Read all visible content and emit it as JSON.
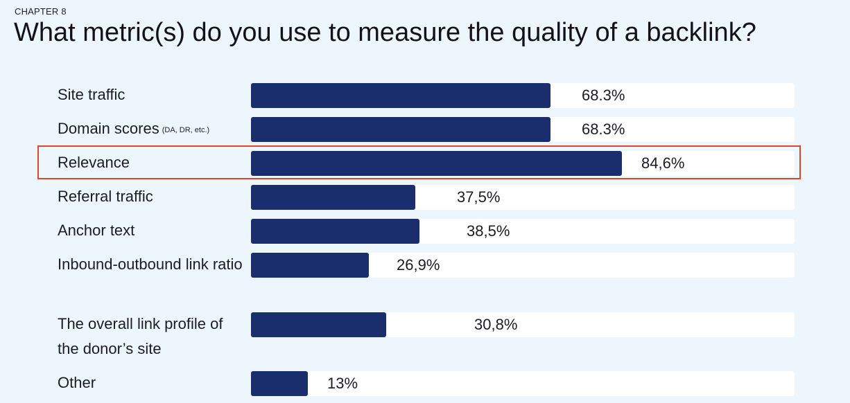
{
  "header": {
    "chapter": "CHAPTER 8",
    "title": "What metric(s) do you use to measure the quality of a backlink?"
  },
  "colors": {
    "background": "#eef6fd",
    "track": "#ffffff",
    "bar": "#1a2d6d",
    "highlight": "#e0442b"
  },
  "chart_data": {
    "type": "bar",
    "orientation": "horizontal",
    "title": "What metric(s) do you use to measure the quality of a backlink?",
    "xlim": [
      0,
      100
    ],
    "grid": false,
    "highlighted_category": "Relevance",
    "categories": [
      {
        "label": "Site traffic",
        "note": "",
        "value": 68.3,
        "value_label": "68.3%"
      },
      {
        "label": "Domain scores",
        "note": "(DA, DR, etc.)",
        "value": 68.3,
        "value_label": "68.3%"
      },
      {
        "label": "Relevance",
        "note": "",
        "value": 84.6,
        "value_label": "84,6%"
      },
      {
        "label": "Referral traffic",
        "note": "",
        "value": 37.5,
        "value_label": "37,5%"
      },
      {
        "label": "Anchor text",
        "note": "",
        "value": 38.5,
        "value_label": "38,5%"
      },
      {
        "label": "Inbound-outbound link ratio",
        "note": "",
        "value": 26.9,
        "value_label": "26,9%"
      },
      {
        "label": "The overall link profile of the donor’s site",
        "note": "",
        "value": 30.8,
        "value_label": "30,8%"
      },
      {
        "label": "Other",
        "note": "",
        "value": 13,
        "value_label": "13%"
      }
    ]
  }
}
